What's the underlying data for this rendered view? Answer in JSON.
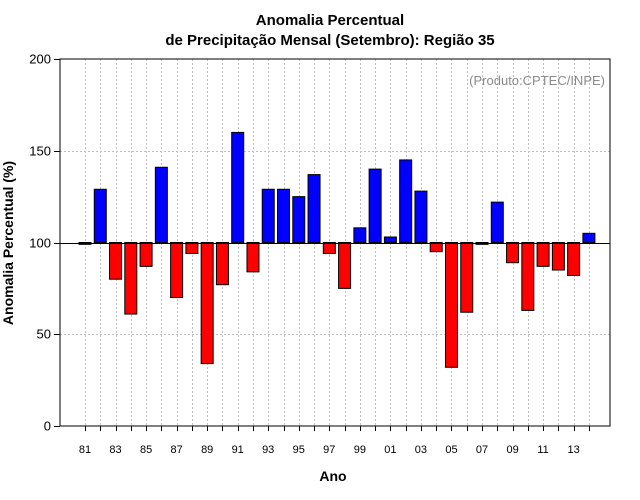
{
  "chart_data": {
    "type": "bar",
    "title_line1": "Anomalia Percentual",
    "title_line2": "de Precipitação Mensal (Setembro): Região 35",
    "xlabel": "Ano",
    "ylabel": "Anomalia Percentual (%)",
    "credit": "(Produto:CPTEC/INPE)",
    "ylim": [
      0,
      200
    ],
    "yticks": [
      0,
      50,
      100,
      150,
      200
    ],
    "baseline": 100,
    "grid": true,
    "colors": {
      "above": "#0000ff",
      "below": "#ff0000",
      "axis": "#000000",
      "grid": "#c0c0c0"
    },
    "categories": [
      "81",
      "82",
      "83",
      "84",
      "85",
      "86",
      "87",
      "88",
      "89",
      "90",
      "91",
      "92",
      "93",
      "94",
      "95",
      "96",
      "97",
      "98",
      "99",
      "00",
      "01",
      "02",
      "03",
      "04",
      "05",
      "06",
      "07",
      "08",
      "09",
      "10",
      "11",
      "12",
      "13",
      "14"
    ],
    "xtick_labels": [
      "81",
      "83",
      "85",
      "87",
      "89",
      "91",
      "93",
      "95",
      "97",
      "99",
      "01",
      "03",
      "05",
      "07",
      "09",
      "11",
      "13"
    ],
    "values": [
      99,
      129,
      80,
      61,
      87,
      141,
      70,
      94,
      34,
      77,
      160,
      84,
      129,
      129,
      125,
      137,
      94,
      75,
      108,
      140,
      103,
      145,
      128,
      95,
      32,
      62,
      99,
      122,
      89,
      63,
      87,
      85,
      82,
      105
    ]
  }
}
